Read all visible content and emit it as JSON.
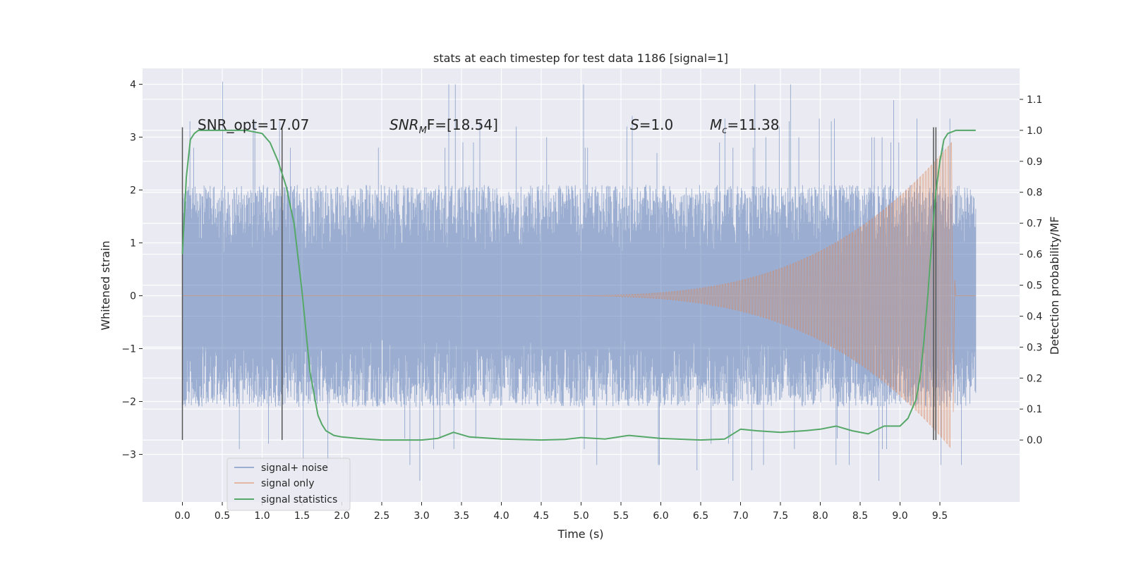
{
  "chart_data": {
    "type": "line",
    "title": "stats at each timestep for test data 1186 [signal=1]",
    "xlabel": "Time (s)",
    "ylabel": "Whitened strain",
    "ylabel_right": "Detection probability/MF",
    "xlim": [
      -0.5,
      10.5
    ],
    "ylim": [
      -3.9,
      4.3
    ],
    "ylim_right": [
      -0.2,
      1.2
    ],
    "xticks": [
      0.0,
      0.5,
      1.0,
      1.5,
      2.0,
      2.5,
      3.0,
      3.5,
      4.0,
      4.5,
      5.0,
      5.5,
      6.0,
      6.5,
      7.0,
      7.5,
      8.0,
      8.5,
      9.0,
      9.5
    ],
    "xtick_labels": [
      "0.0",
      "0.5",
      "1.0",
      "1.5",
      "2.0",
      "2.5",
      "3.0",
      "3.5",
      "4.0",
      "4.5",
      "5.0",
      "5.5",
      "6.0",
      "6.5",
      "7.0",
      "7.5",
      "8.0",
      "8.5",
      "9.0",
      "9.5"
    ],
    "yticks": [
      -3,
      -2,
      -1,
      0,
      1,
      2,
      3,
      4
    ],
    "ytick_labels": [
      "−3",
      "−2",
      "−1",
      "0",
      "1",
      "2",
      "3",
      "4"
    ],
    "yticks_right": [
      0.0,
      0.1,
      0.2,
      0.3,
      0.4,
      0.5,
      0.6,
      0.7,
      0.8,
      0.9,
      1.0,
      1.1
    ],
    "ytick_labels_right": [
      "0.0",
      "0.1",
      "0.2",
      "0.3",
      "0.4",
      "0.5",
      "0.6",
      "0.7",
      "0.8",
      "0.9",
      "1.0",
      "1.1"
    ],
    "grid": true,
    "legend_position": "lower-left",
    "annotations": {
      "snr_opt": "SNR_opt=17.07",
      "snr_mf_main": "SNR",
      "snr_mf_sub": "M",
      "snr_mf_rest": "F=[18.54]",
      "s_main": "S",
      "s_rest": "=1.0",
      "mc_main": "M",
      "mc_sub": "c",
      "mc_rest": "=11.38"
    },
    "vertical_markers": [
      0.0,
      1.25,
      9.42,
      9.45
    ],
    "series": [
      {
        "name": "signal+ noise",
        "color": "#4c72b0",
        "axis": "left",
        "envelope": {
          "x": [
            0.0,
            9.95
          ],
          "typical_amplitude": 1.5,
          "spike_max": [
            3.7,
            3.2,
            2.7,
            2.9,
            4.0,
            2.8,
            2.8,
            4.05,
            3.4,
            3.35,
            3.0,
            3.35,
            3.0,
            3.3,
            3.3
          ],
          "spike_min": [
            -2.9,
            -3.2,
            -2.9,
            -2.8,
            -3.3,
            -2.9,
            -3.2,
            -3.5,
            -2.7
          ]
        }
      },
      {
        "name": "signal only",
        "color": "#dd8452",
        "axis": "left",
        "chirp": {
          "start": 4.5,
          "merger": 9.65,
          "peak_amplitude": 2.9,
          "end": 9.7
        }
      },
      {
        "name": "signal statistics",
        "color": "#55a868",
        "axis": "right",
        "x": [
          0.0,
          0.05,
          0.1,
          0.15,
          0.2,
          0.3,
          0.5,
          0.8,
          1.0,
          1.1,
          1.2,
          1.3,
          1.4,
          1.5,
          1.6,
          1.7,
          1.75,
          1.8,
          1.9,
          2.0,
          2.2,
          2.5,
          3.0,
          3.2,
          3.4,
          3.6,
          4.0,
          4.5,
          4.8,
          5.0,
          5.3,
          5.6,
          6.0,
          6.5,
          6.8,
          7.0,
          7.2,
          7.5,
          7.8,
          8.0,
          8.2,
          8.4,
          8.6,
          8.8,
          9.0,
          9.1,
          9.2,
          9.25,
          9.3,
          9.35,
          9.4,
          9.45,
          9.5,
          9.55,
          9.6,
          9.7,
          9.8,
          9.9,
          9.95
        ],
        "values": [
          0.6,
          0.85,
          0.97,
          0.99,
          1.0,
          1.0,
          1.0,
          1.0,
          0.99,
          0.96,
          0.9,
          0.82,
          0.7,
          0.48,
          0.22,
          0.08,
          0.05,
          0.03,
          0.015,
          0.01,
          0.005,
          0.0,
          0.0,
          0.005,
          0.025,
          0.01,
          0.003,
          0.0,
          0.002,
          0.008,
          0.003,
          0.015,
          0.005,
          0.0,
          0.003,
          0.035,
          0.03,
          0.025,
          0.03,
          0.035,
          0.045,
          0.03,
          0.02,
          0.045,
          0.045,
          0.07,
          0.13,
          0.2,
          0.32,
          0.47,
          0.65,
          0.8,
          0.9,
          0.97,
          0.99,
          1.0,
          1.0,
          1.0,
          1.0
        ]
      }
    ]
  }
}
